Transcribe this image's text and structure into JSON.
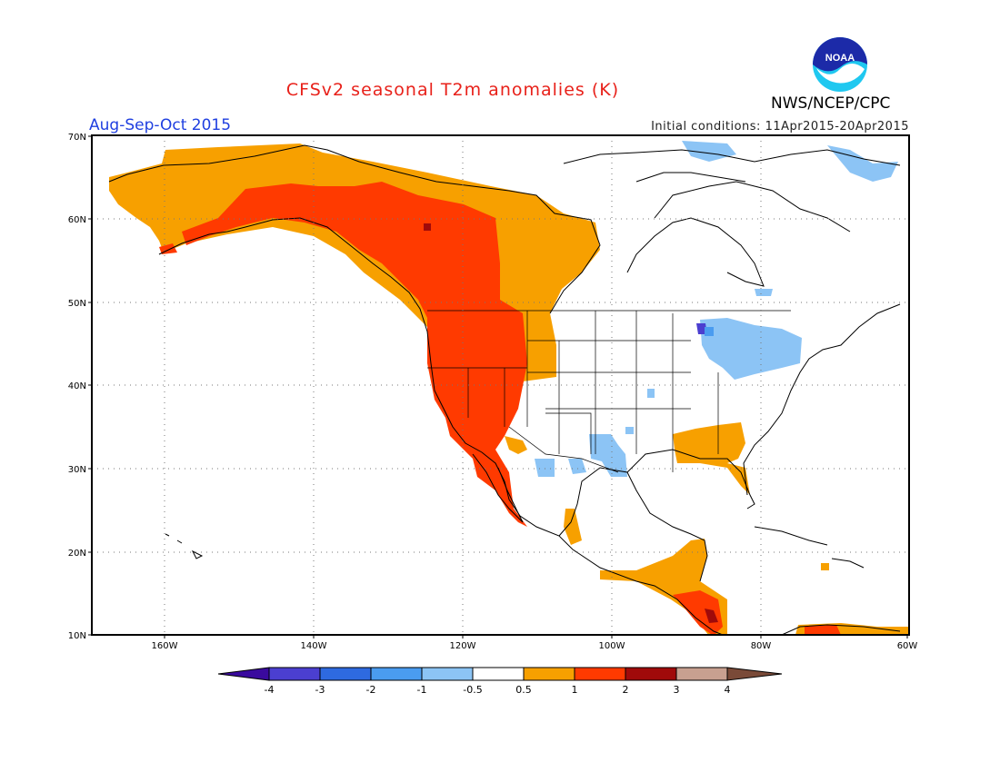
{
  "title": "CFSv2 seasonal T2m anomalies (K)",
  "season": "Aug-Sep-Oct 2015",
  "initial_conditions": "Initial conditions: 11Apr2015-20Apr2015",
  "agency": "NWS/NCEP/CPC",
  "logo_text": "NOAA",
  "map": {
    "lat_labels": [
      "70N",
      "60N",
      "50N",
      "40N",
      "30N",
      "20N",
      "10N"
    ],
    "lon_labels": [
      "160W",
      "140W",
      "120W",
      "100W",
      "80W",
      "60W"
    ]
  },
  "colorbar": {
    "labels": [
      "-4",
      "-3",
      "-2",
      "-1",
      "-0.5",
      "0.5",
      "1",
      "2",
      "3",
      "4"
    ],
    "colors": [
      "#3a0a9e",
      "#4b3fd0",
      "#2e6ae0",
      "#4a9cf0",
      "#8cc4f5",
      "#ffffff",
      "#f7a000",
      "#ff3a00",
      "#a00a0a",
      "#c8a090",
      "#7a4a38"
    ]
  }
}
